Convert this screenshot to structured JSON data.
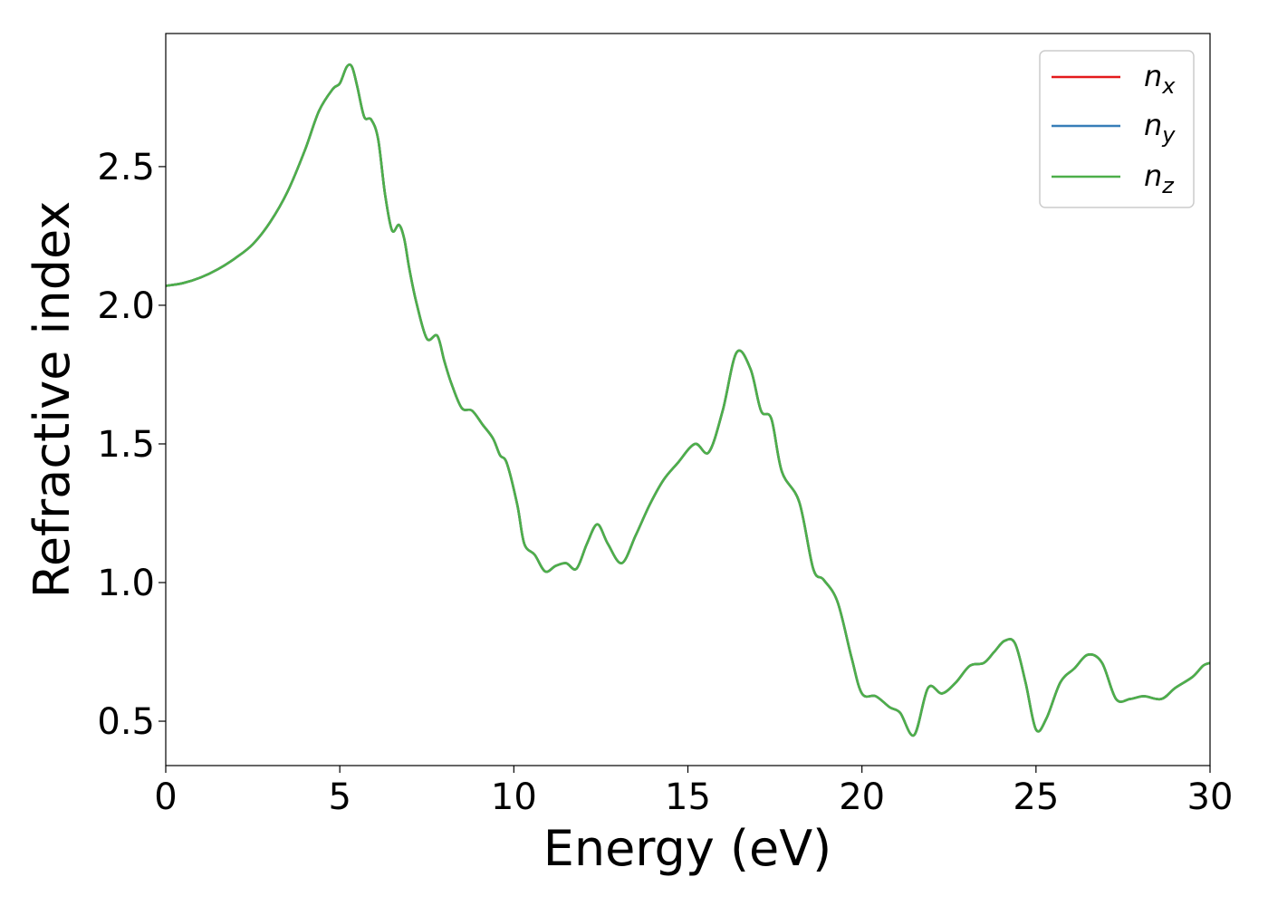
{
  "chart_data": {
    "type": "line",
    "xlabel": "Energy (eV)",
    "ylabel": "Refractive index",
    "xlim": [
      0,
      30
    ],
    "ylim": [
      0.34,
      2.98
    ],
    "xticks": [
      0,
      5,
      10,
      15,
      20,
      25,
      30
    ],
    "xtick_labels": [
      "0",
      "5",
      "10",
      "15",
      "20",
      "25",
      "30"
    ],
    "yticks": [
      0.5,
      1.0,
      1.5,
      2.0,
      2.5
    ],
    "ytick_labels": [
      "0.5",
      "1.0",
      "1.5",
      "2.0",
      "2.5"
    ],
    "grid": false,
    "legend_position": "top-right",
    "series": [
      {
        "name": "n_x",
        "legend_base": "n",
        "legend_sub": "x",
        "color": "#e41a1c"
      },
      {
        "name": "n_y",
        "legend_base": "n",
        "legend_sub": "y",
        "color": "#377eb8"
      },
      {
        "name": "n_z",
        "legend_base": "n",
        "legend_sub": "z",
        "color": "#4daf4a"
      }
    ],
    "x": [
      0,
      0.5,
      1,
      1.5,
      2,
      2.5,
      3,
      3.5,
      4,
      4.4,
      4.8,
      5,
      5.2,
      5.35,
      5.5,
      5.7,
      5.9,
      6.1,
      6.3,
      6.5,
      6.7,
      6.85,
      7,
      7.2,
      7.5,
      7.8,
      8,
      8.2,
      8.5,
      8.8,
      9.1,
      9.4,
      9.6,
      9.8,
      10.1,
      10.3,
      10.6,
      10.9,
      11.2,
      11.5,
      11.8,
      12.1,
      12.4,
      12.7,
      13.1,
      13.5,
      13.9,
      14.3,
      14.7,
      15.2,
      15.6,
      16,
      16.4,
      16.8,
      17.1,
      17.4,
      17.7,
      18.2,
      18.6,
      18.9,
      19.3,
      19.7,
      20,
      20.4,
      20.8,
      21.1,
      21.5,
      21.9,
      22.3,
      22.7,
      23.1,
      23.5,
      23.8,
      24.1,
      24.4,
      24.7,
      25,
      25.3,
      25.7,
      26.1,
      26.5,
      26.9,
      27.3,
      27.7,
      28.1,
      28.6,
      29,
      29.5,
      29.8,
      30
    ],
    "y": [
      2.07,
      2.08,
      2.1,
      2.13,
      2.17,
      2.22,
      2.3,
      2.41,
      2.56,
      2.7,
      2.78,
      2.8,
      2.86,
      2.86,
      2.79,
      2.68,
      2.67,
      2.6,
      2.4,
      2.27,
      2.29,
      2.24,
      2.13,
      2.01,
      1.88,
      1.89,
      1.8,
      1.72,
      1.63,
      1.62,
      1.57,
      1.52,
      1.46,
      1.43,
      1.28,
      1.14,
      1.1,
      1.04,
      1.06,
      1.07,
      1.05,
      1.14,
      1.21,
      1.14,
      1.07,
      1.17,
      1.28,
      1.37,
      1.43,
      1.5,
      1.47,
      1.62,
      1.83,
      1.77,
      1.62,
      1.59,
      1.4,
      1.29,
      1.05,
      1.01,
      0.93,
      0.73,
      0.6,
      0.59,
      0.55,
      0.53,
      0.45,
      0.62,
      0.6,
      0.64,
      0.7,
      0.71,
      0.75,
      0.79,
      0.78,
      0.64,
      0.47,
      0.51,
      0.64,
      0.69,
      0.74,
      0.71,
      0.58,
      0.58,
      0.59,
      0.58,
      0.62,
      0.66,
      0.7,
      0.71
    ]
  }
}
